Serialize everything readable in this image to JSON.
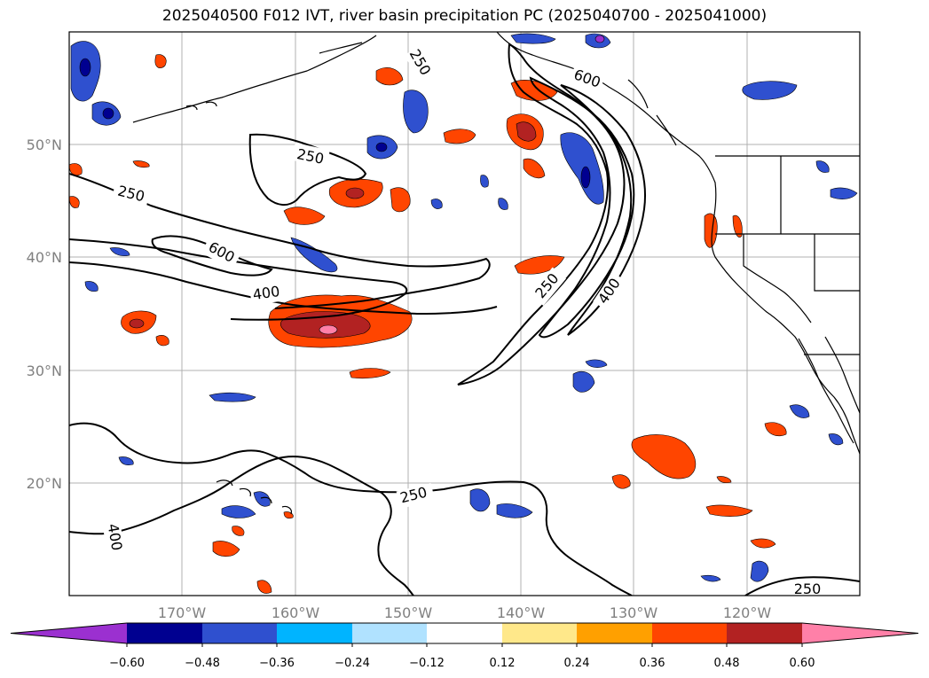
{
  "title": "2025040500 F012 IVT, river basin precipitation PC (2025040700 - 2025041000)",
  "map": {
    "lon_ticks": [
      "170°W",
      "160°W",
      "150°W",
      "140°W",
      "130°W",
      "120°W"
    ],
    "lat_ticks": [
      "50°N",
      "40°N",
      "30°N",
      "20°N"
    ],
    "extent": {
      "lon_min": -180,
      "lon_max": -110,
      "lat_min": 10,
      "lat_max": 60
    },
    "contour_labels": [
      "250",
      "250",
      "250",
      "250",
      "250",
      "250",
      "600",
      "600",
      "400",
      "400",
      "400"
    ]
  },
  "colorbar": {
    "ticks": [
      "−0.60",
      "−0.48",
      "−0.36",
      "−0.24",
      "−0.12",
      "0.12",
      "0.24",
      "0.36",
      "0.48",
      "0.60"
    ],
    "colors": [
      "#9b30d0",
      "#000090",
      "#2f50cf",
      "#00b4ff",
      "#b0e2ff",
      "#ffffff",
      "#ffe88a",
      "#ffa000",
      "#ff4500",
      "#b22222",
      "#ff80a8"
    ]
  }
}
